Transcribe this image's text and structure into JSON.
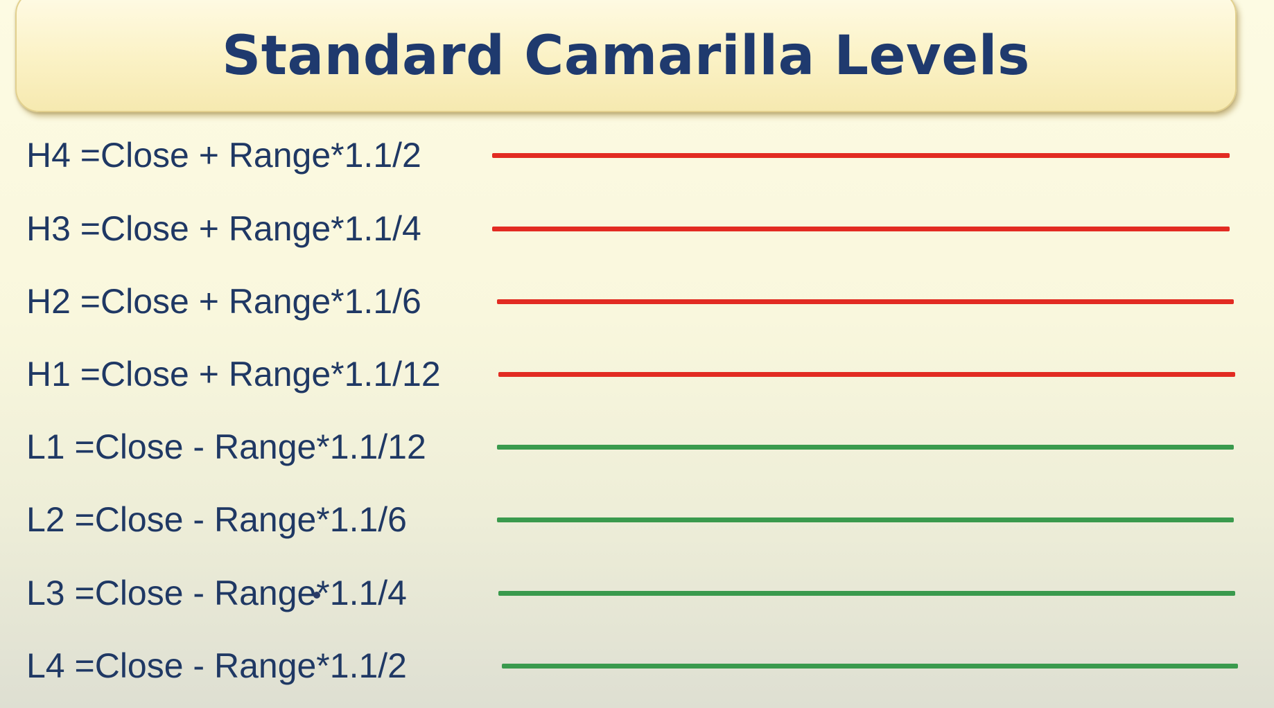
{
  "title": "Standard Camarilla Levels",
  "colors": {
    "resistance": "#e22b22",
    "support": "#3a9a4d",
    "title_text": "#1f3a6e",
    "formula_text": "#1f3864"
  },
  "levels": [
    {
      "formula": "H4 =Close + Range*1.1/2",
      "type": "resistance"
    },
    {
      "formula": "H3 =Close + Range*1.1/4",
      "type": "resistance"
    },
    {
      "formula": "H2 =Close + Range*1.1/6",
      "type": "resistance"
    },
    {
      "formula": "H1 =Close + Range*1.1/12",
      "type": "resistance"
    },
    {
      "formula": "L1 =Close - Range*1.1/12",
      "type": "support"
    },
    {
      "formula": "L2 =Close - Range*1.1/6",
      "type": "support"
    },
    {
      "formula": "L3 =Close - Range*1.1/4",
      "type": "support"
    },
    {
      "formula": "L4 =Close - Range*1.1/2",
      "type": "support"
    }
  ]
}
